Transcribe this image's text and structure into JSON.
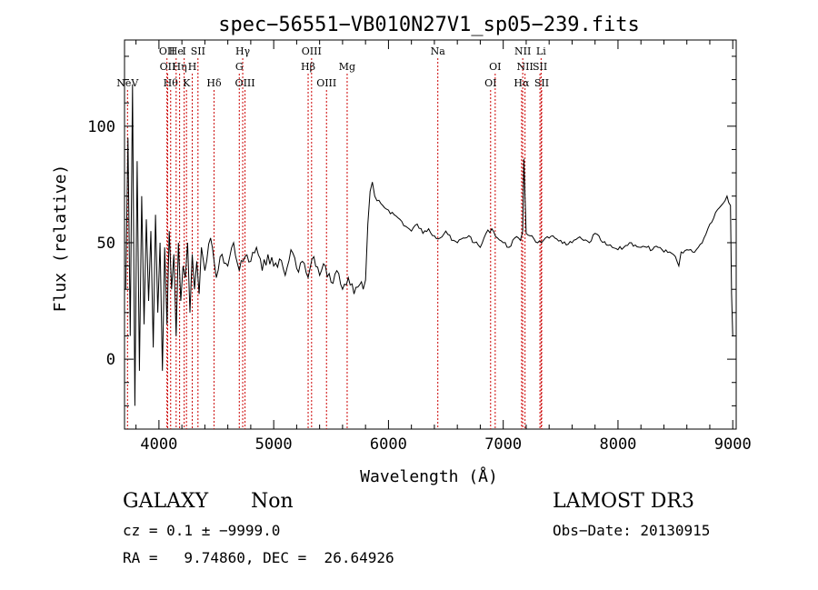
{
  "chart_data": {
    "type": "line",
    "title": "spec−56551−VB010N27V1_sp05−239.fits",
    "xlabel": "Wavelength (Å)",
    "ylabel": "Flux (relative)",
    "xlim": [
      3700,
      9030
    ],
    "ylim": [
      -30,
      137
    ],
    "xticks": [
      4000,
      5000,
      6000,
      7000,
      8000,
      9000
    ],
    "yticks": [
      0,
      50,
      100
    ],
    "grid": false,
    "line_color": "#000000",
    "marker_color": "#cc0000",
    "series": [
      {
        "x": [
          3710,
          3730,
          3750,
          3770,
          3790,
          3810,
          3830,
          3850,
          3870,
          3890,
          3910,
          3930,
          3950,
          3970,
          3990,
          4010,
          4030,
          4050,
          4070,
          4090,
          4110,
          4130,
          4150,
          4170,
          4190,
          4210,
          4230,
          4250,
          4270,
          4290,
          4310,
          4330,
          4350,
          4370,
          4400,
          4450,
          4500,
          4550,
          4600,
          4650,
          4700,
          4750,
          4800,
          4850,
          4900,
          4950,
          5000,
          5050,
          5100,
          5150,
          5200,
          5250,
          5300,
          5350,
          5400,
          5450,
          5500,
          5550,
          5600,
          5650,
          5700,
          5750,
          5780,
          5800,
          5820,
          5840,
          5860,
          5880,
          5900,
          5950,
          6000,
          6050,
          6100,
          6150,
          6200,
          6250,
          6300,
          6350,
          6400,
          6450,
          6500,
          6550,
          6600,
          6650,
          6700,
          6750,
          6800,
          6850,
          6900,
          6950,
          7000,
          7050,
          7100,
          7150,
          7170,
          7180,
          7200,
          7250,
          7300,
          7350,
          7400,
          7450,
          7500,
          7550,
          7600,
          7650,
          7700,
          7750,
          7800,
          7850,
          7900,
          7950,
          8000,
          8050,
          8100,
          8150,
          8200,
          8250,
          8300,
          8350,
          8400,
          8450,
          8500,
          8530,
          8550,
          8600,
          8650,
          8700,
          8750,
          8800,
          8850,
          8900,
          8950,
          8980,
          8990,
          9000
        ],
        "y": [
          30,
          95,
          10,
          118,
          -20,
          85,
          -5,
          70,
          15,
          60,
          25,
          55,
          5,
          62,
          20,
          50,
          -5,
          48,
          15,
          55,
          30,
          45,
          10,
          50,
          25,
          40,
          35,
          50,
          20,
          45,
          30,
          42,
          28,
          48,
          38,
          52,
          35,
          45,
          40,
          50,
          38,
          44,
          42,
          48,
          38,
          45,
          40,
          43,
          36,
          47,
          39,
          42,
          35,
          44,
          36,
          40,
          33,
          38,
          30,
          35,
          28,
          32,
          30,
          34,
          58,
          72,
          76,
          70,
          68,
          66,
          64,
          62,
          60,
          57,
          55,
          58,
          54,
          56,
          53,
          52,
          55,
          51,
          50,
          52,
          53,
          50,
          48,
          54,
          56,
          52,
          50,
          48,
          52,
          51,
          55,
          86,
          54,
          53,
          50,
          51,
          52,
          52,
          51,
          49,
          50,
          52,
          51,
          50,
          54,
          51,
          49,
          48,
          47,
          48,
          50,
          49,
          48,
          48,
          47,
          48,
          46,
          46,
          44,
          40,
          46,
          47,
          46,
          48,
          52,
          58,
          63,
          66,
          70,
          66,
          28,
          10
        ]
      }
    ],
    "line_markers": [
      {
        "label": "NeV",
        "x": 3726,
        "row": 3
      },
      {
        "label": "OII",
        "x": 4070,
        "row": 1
      },
      {
        "label": "OII",
        "x": 4076,
        "row": 2
      },
      {
        "label": "Hθ",
        "x": 4102,
        "row": 3
      },
      {
        "label": "He",
        "x": 4150,
        "row": 1
      },
      {
        "label": "Hη",
        "x": 4180,
        "row": 2
      },
      {
        "label": "I",
        "x": 4220,
        "row": 1
      },
      {
        "label": "K",
        "x": 4240,
        "row": 3
      },
      {
        "label": "H",
        "x": 4290,
        "row": 2
      },
      {
        "label": "SII",
        "x": 4340,
        "row": 1
      },
      {
        "label": "Hδ",
        "x": 4480,
        "row": 3
      },
      {
        "label": "Hγ",
        "x": 4730,
        "row": 1
      },
      {
        "label": "G",
        "x": 4700,
        "row": 2
      },
      {
        "label": "OIII",
        "x": 4750,
        "row": 3
      },
      {
        "label": "OIII",
        "x": 5330,
        "row": 1
      },
      {
        "label": "Hβ",
        "x": 5300,
        "row": 2
      },
      {
        "label": "OIII",
        "x": 5460,
        "row": 3
      },
      {
        "label": "Mg",
        "x": 5640,
        "row": 2
      },
      {
        "label": "Na",
        "x": 6430,
        "row": 1
      },
      {
        "label": "OI",
        "x": 6930,
        "row": 2
      },
      {
        "label": "OI",
        "x": 6890,
        "row": 3
      },
      {
        "label": "NII",
        "x": 7170,
        "row": 1
      },
      {
        "label": "NII",
        "x": 7190,
        "row": 2
      },
      {
        "label": "Hα",
        "x": 7160,
        "row": 3
      },
      {
        "label": "Li",
        "x": 7330,
        "row": 1
      },
      {
        "label": "SII",
        "x": 7320,
        "row": 2
      },
      {
        "label": "SII",
        "x": 7335,
        "row": 3
      }
    ]
  },
  "info": {
    "object_class": "GALAXY",
    "subclass": "Non",
    "survey": "LAMOST DR3",
    "redshift_line": "cz = 0.1 ± −9999.0",
    "obs_date_line": "Obs−Date: 20130915",
    "coords_line": "RA =   9.74860, DEC =  26.64926"
  }
}
